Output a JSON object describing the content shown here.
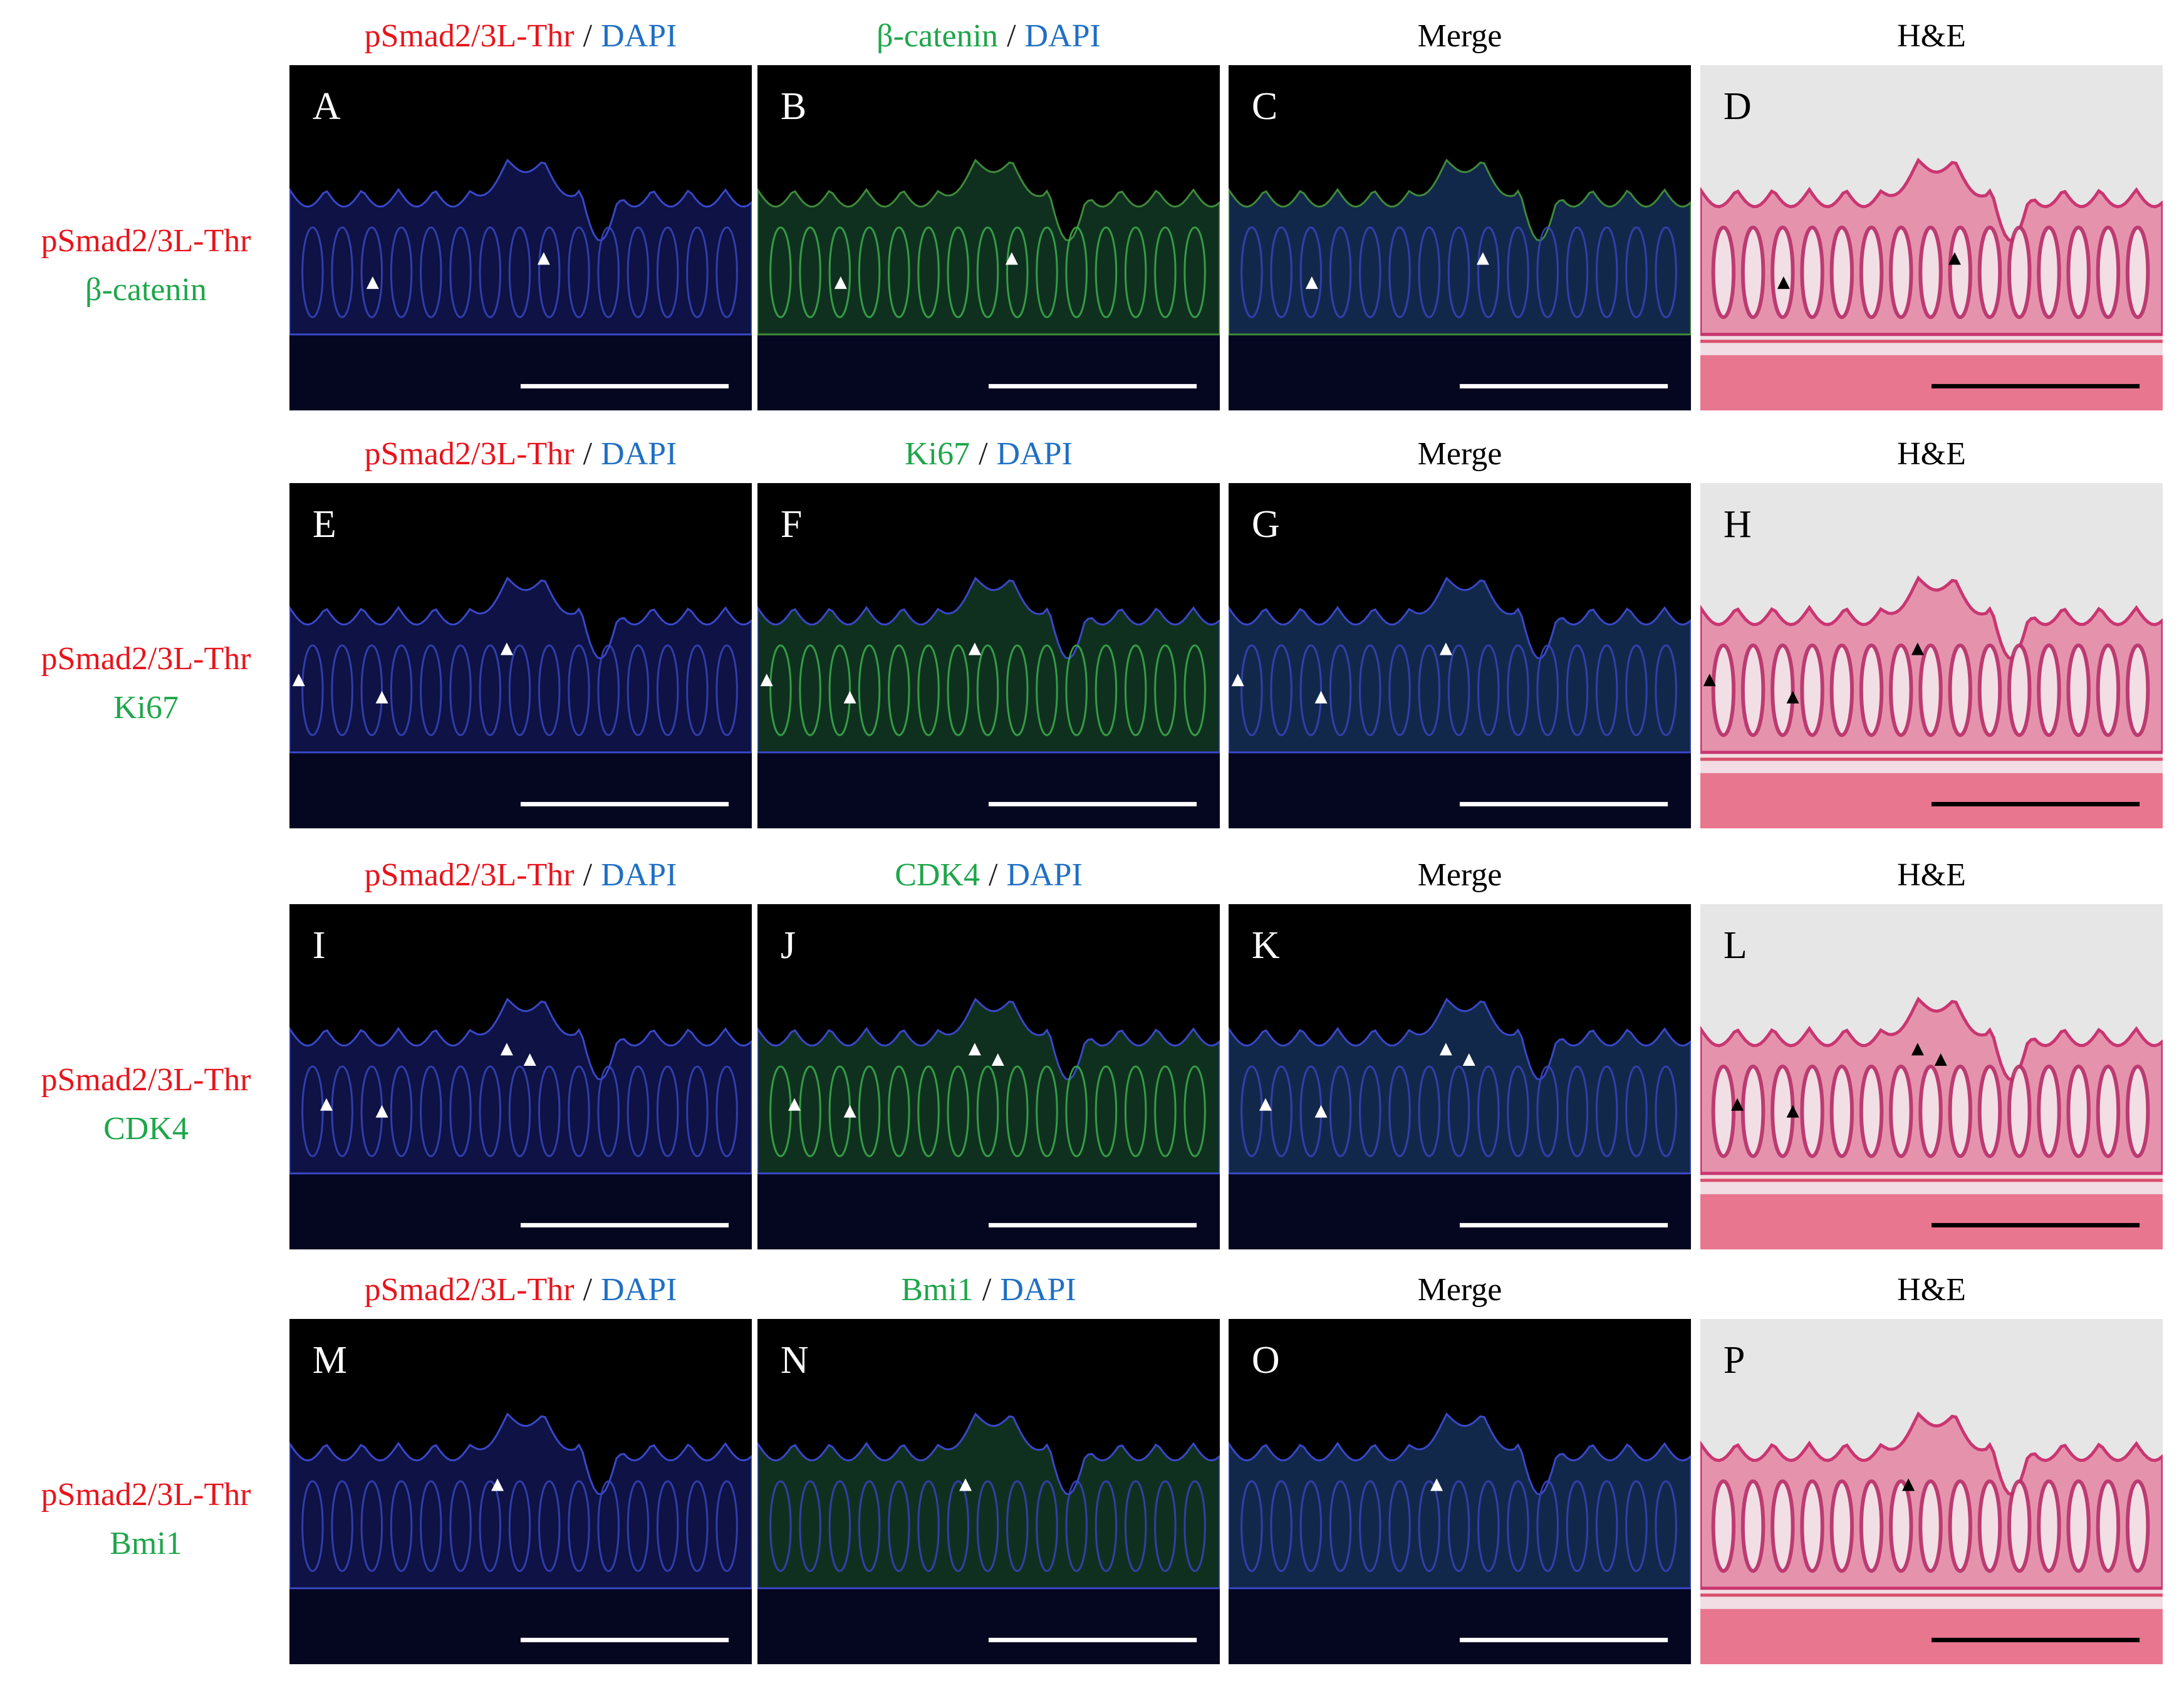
{
  "rows": [
    {
      "label": [
        {
          "text": "pSmad2/3L-Thr",
          "color": "#e8141c"
        },
        {
          "text": "β-catenin",
          "color": "#1ea64a"
        }
      ],
      "headers": [
        [
          {
            "text": "pSmad2/3L-Thr",
            "color": "#e8141c"
          },
          {
            "text": "/",
            "color": "#1a1a1a"
          },
          {
            "text": "DAPI",
            "color": "#1f6fc4"
          }
        ],
        [
          {
            "text": "β-catenin",
            "color": "#1ea64a"
          },
          {
            "text": "/",
            "color": "#1a1a1a"
          },
          {
            "text": "DAPI",
            "color": "#1f6fc4"
          }
        ],
        [
          {
            "text": "Merge",
            "color": "#000000"
          }
        ],
        [
          {
            "text": "H&E",
            "color": "#000000"
          }
        ]
      ],
      "panels": [
        "A",
        "B",
        "C",
        "D"
      ]
    },
    {
      "label": [
        {
          "text": "pSmad2/3L-Thr",
          "color": "#e8141c"
        },
        {
          "text": "Ki67",
          "color": "#1ea64a"
        }
      ],
      "headers": [
        [
          {
            "text": "pSmad2/3L-Thr",
            "color": "#e8141c"
          },
          {
            "text": "/",
            "color": "#1a1a1a"
          },
          {
            "text": "DAPI",
            "color": "#1f6fc4"
          }
        ],
        [
          {
            "text": "Ki67",
            "color": "#1ea64a"
          },
          {
            "text": "/",
            "color": "#1a1a1a"
          },
          {
            "text": "DAPI",
            "color": "#1f6fc4"
          }
        ],
        [
          {
            "text": "Merge",
            "color": "#000000"
          }
        ],
        [
          {
            "text": "H&E",
            "color": "#000000"
          }
        ]
      ],
      "panels": [
        "E",
        "F",
        "G",
        "H"
      ]
    },
    {
      "label": [
        {
          "text": "pSmad2/3L-Thr",
          "color": "#e8141c"
        },
        {
          "text": "CDK4",
          "color": "#1ea64a"
        }
      ],
      "headers": [
        [
          {
            "text": "pSmad2/3L-Thr",
            "color": "#e8141c"
          },
          {
            "text": "/",
            "color": "#1a1a1a"
          },
          {
            "text": "DAPI",
            "color": "#1f6fc4"
          }
        ],
        [
          {
            "text": "CDK4",
            "color": "#1ea64a"
          },
          {
            "text": "/",
            "color": "#1a1a1a"
          },
          {
            "text": "DAPI",
            "color": "#1f6fc4"
          }
        ],
        [
          {
            "text": "Merge",
            "color": "#000000"
          }
        ],
        [
          {
            "text": "H&E",
            "color": "#000000"
          }
        ]
      ],
      "panels": [
        "I",
        "J",
        "K",
        "L"
      ]
    },
    {
      "label": [
        {
          "text": "pSmad2/3L-Thr",
          "color": "#e8141c"
        },
        {
          "text": "Bmi1",
          "color": "#1ea64a"
        }
      ],
      "headers": [
        [
          {
            "text": "pSmad2/3L-Thr",
            "color": "#e8141c"
          },
          {
            "text": "/",
            "color": "#1a1a1a"
          },
          {
            "text": "DAPI",
            "color": "#1f6fc4"
          }
        ],
        [
          {
            "text": "Bmi1",
            "color": "#1ea64a"
          },
          {
            "text": "/",
            "color": "#1a1a1a"
          },
          {
            "text": "DAPI",
            "color": "#1f6fc4"
          }
        ],
        [
          {
            "text": "Merge",
            "color": "#000000"
          }
        ],
        [
          {
            "text": "H&E",
            "color": "#000000"
          }
        ]
      ],
      "panels": [
        "M",
        "N",
        "O",
        "P"
      ]
    }
  ]
}
